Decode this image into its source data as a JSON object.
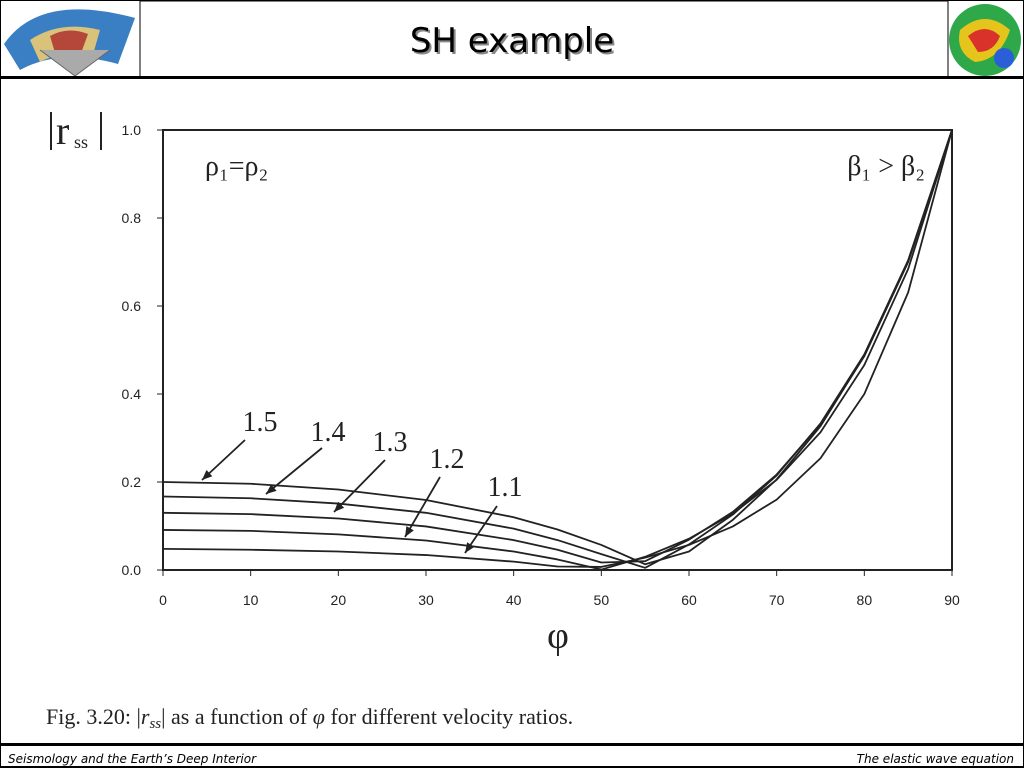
{
  "header": {
    "title": "SH example"
  },
  "footer": {
    "left": "Seismology and the Earth’s Deep Interior",
    "right": "The elastic wave equation"
  },
  "chart_data": {
    "type": "line",
    "ylabel": {
      "base": "r",
      "sub": "ss"
    },
    "xlabel": "φ",
    "annotations": [
      "ρ₁=ρ₂",
      "β₁ > β₂"
    ],
    "caption": [
      "Fig. 3.20: |",
      "r",
      "ss",
      "| as a function of ",
      "φ",
      " for different velocity ratios."
    ],
    "x": [
      0,
      10,
      20,
      30,
      40,
      45,
      50,
      55,
      60,
      65,
      70,
      75,
      80,
      85,
      90
    ],
    "series": [
      {
        "name": "1.5",
        "color": "#222222",
        "values": [
          0.2,
          0.196,
          0.183,
          0.159,
          0.12,
          0.092,
          0.057,
          0.013,
          0.042,
          0.114,
          0.206,
          0.327,
          0.487,
          0.702,
          1
        ]
      },
      {
        "name": "1.4",
        "color": "#222222",
        "values": [
          0.167,
          0.163,
          0.151,
          0.13,
          0.094,
          0.068,
          0.036,
          0.005,
          0.058,
          0.126,
          0.215,
          0.333,
          0.49,
          0.704,
          1
        ]
      },
      {
        "name": "1.3",
        "color": "#222222",
        "values": [
          0.13,
          0.127,
          0.117,
          0.099,
          0.068,
          0.046,
          0.017,
          0.02,
          0.069,
          0.132,
          0.217,
          0.331,
          0.486,
          0.7,
          1
        ]
      },
      {
        "name": "1.2",
        "color": "#222222",
        "values": [
          0.091,
          0.089,
          0.081,
          0.067,
          0.042,
          0.024,
          0.001,
          0.03,
          0.071,
          0.128,
          0.205,
          0.313,
          0.466,
          0.684,
          1
        ]
      },
      {
        "name": "1.1",
        "color": "#222222",
        "values": [
          0.048,
          0.046,
          0.042,
          0.034,
          0.019,
          0.008,
          0.007,
          0.028,
          0.057,
          0.099,
          0.16,
          0.254,
          0.4,
          0.631,
          1
        ]
      }
    ],
    "xlim": [
      0,
      90
    ],
    "xticks": [
      0,
      10,
      20,
      30,
      40,
      50,
      60,
      70,
      80,
      90
    ],
    "ylim": [
      0,
      1
    ],
    "yticks": [
      {
        "value": 0,
        "label": "0.0"
      },
      0.2,
      0.4,
      0.6,
      0.8,
      {
        "value": 1,
        "label": "1.0"
      }
    ]
  }
}
